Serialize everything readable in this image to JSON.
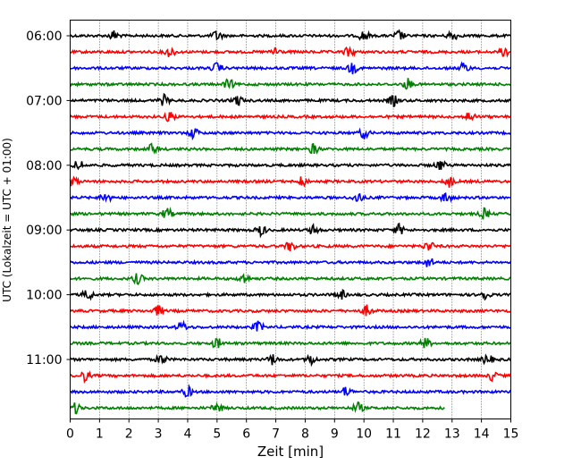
{
  "chart_data": {
    "type": "line",
    "title": "",
    "xlabel": "Zeit  [min]",
    "ylabel": "UTC (Lokalzeit = UTC + 01:00)",
    "xlim": [
      0,
      15
    ],
    "x_ticks": [
      0,
      1,
      2,
      3,
      4,
      5,
      6,
      7,
      8,
      9,
      10,
      11,
      12,
      13,
      14,
      15
    ],
    "x_tick_labels": [
      "0",
      "1",
      "2",
      "3",
      "4",
      "5",
      "6",
      "7",
      "8",
      "9",
      "10",
      "11",
      "12",
      "13",
      "14",
      "15"
    ],
    "y_tick_labels": [
      "06:00",
      "07:00",
      "08:00",
      "09:00",
      "10:00",
      "11:00"
    ],
    "vertical_grid": "dotted",
    "trace_colors": [
      "#000000",
      "#ff0000",
      "#0000ff",
      "#008000"
    ],
    "traces": [
      {
        "start": "06:00",
        "end_min": 15
      },
      {
        "start": "06:15",
        "end_min": 15
      },
      {
        "start": "06:30",
        "end_min": 15
      },
      {
        "start": "06:45",
        "end_min": 15
      },
      {
        "start": "07:00",
        "end_min": 15
      },
      {
        "start": "07:15",
        "end_min": 15
      },
      {
        "start": "07:30",
        "end_min": 15
      },
      {
        "start": "07:45",
        "end_min": 15
      },
      {
        "start": "08:00",
        "end_min": 15
      },
      {
        "start": "08:15",
        "end_min": 15
      },
      {
        "start": "08:30",
        "end_min": 15
      },
      {
        "start": "08:45",
        "end_min": 15
      },
      {
        "start": "09:00",
        "end_min": 15
      },
      {
        "start": "09:15",
        "end_min": 15
      },
      {
        "start": "09:30",
        "end_min": 15
      },
      {
        "start": "09:45",
        "end_min": 15
      },
      {
        "start": "10:00",
        "end_min": 15
      },
      {
        "start": "10:15",
        "end_min": 15
      },
      {
        "start": "10:30",
        "end_min": 15
      },
      {
        "start": "10:45",
        "end_min": 15
      },
      {
        "start": "11:00",
        "end_min": 15
      },
      {
        "start": "11:15",
        "end_min": 15
      },
      {
        "start": "11:30",
        "end_min": 15
      },
      {
        "start": "11:45",
        "end_min": 12.75
      }
    ],
    "events": [
      [
        1.5,
        5.0,
        10.0,
        11.2,
        13.0
      ],
      [
        3.4,
        7.0,
        9.5,
        14.8
      ],
      [
        5.0,
        9.6,
        13.4
      ],
      [
        5.4,
        11.5
      ],
      [
        3.2,
        5.7,
        11.0
      ],
      [
        3.4,
        13.6
      ],
      [
        4.2,
        10.0
      ],
      [
        2.8,
        8.3
      ],
      [
        0.3,
        12.6
      ],
      [
        0.1,
        7.9,
        12.9
      ],
      [
        1.2,
        9.8,
        12.8
      ],
      [
        3.3,
        14.1
      ],
      [
        6.5,
        8.3,
        11.2
      ],
      [
        7.5,
        12.2
      ],
      [
        12.2
      ],
      [
        2.3,
        5.9
      ],
      [
        0.6,
        9.2,
        14.1
      ],
      [
        3.0,
        10.1
      ],
      [
        3.8,
        6.4
      ],
      [
        5.0,
        12.1
      ],
      [
        3.1,
        6.9,
        8.2,
        14.2
      ],
      [
        0.5,
        14.4
      ],
      [
        4.0,
        9.4
      ],
      [
        0.2,
        5.0,
        9.8
      ]
    ]
  }
}
